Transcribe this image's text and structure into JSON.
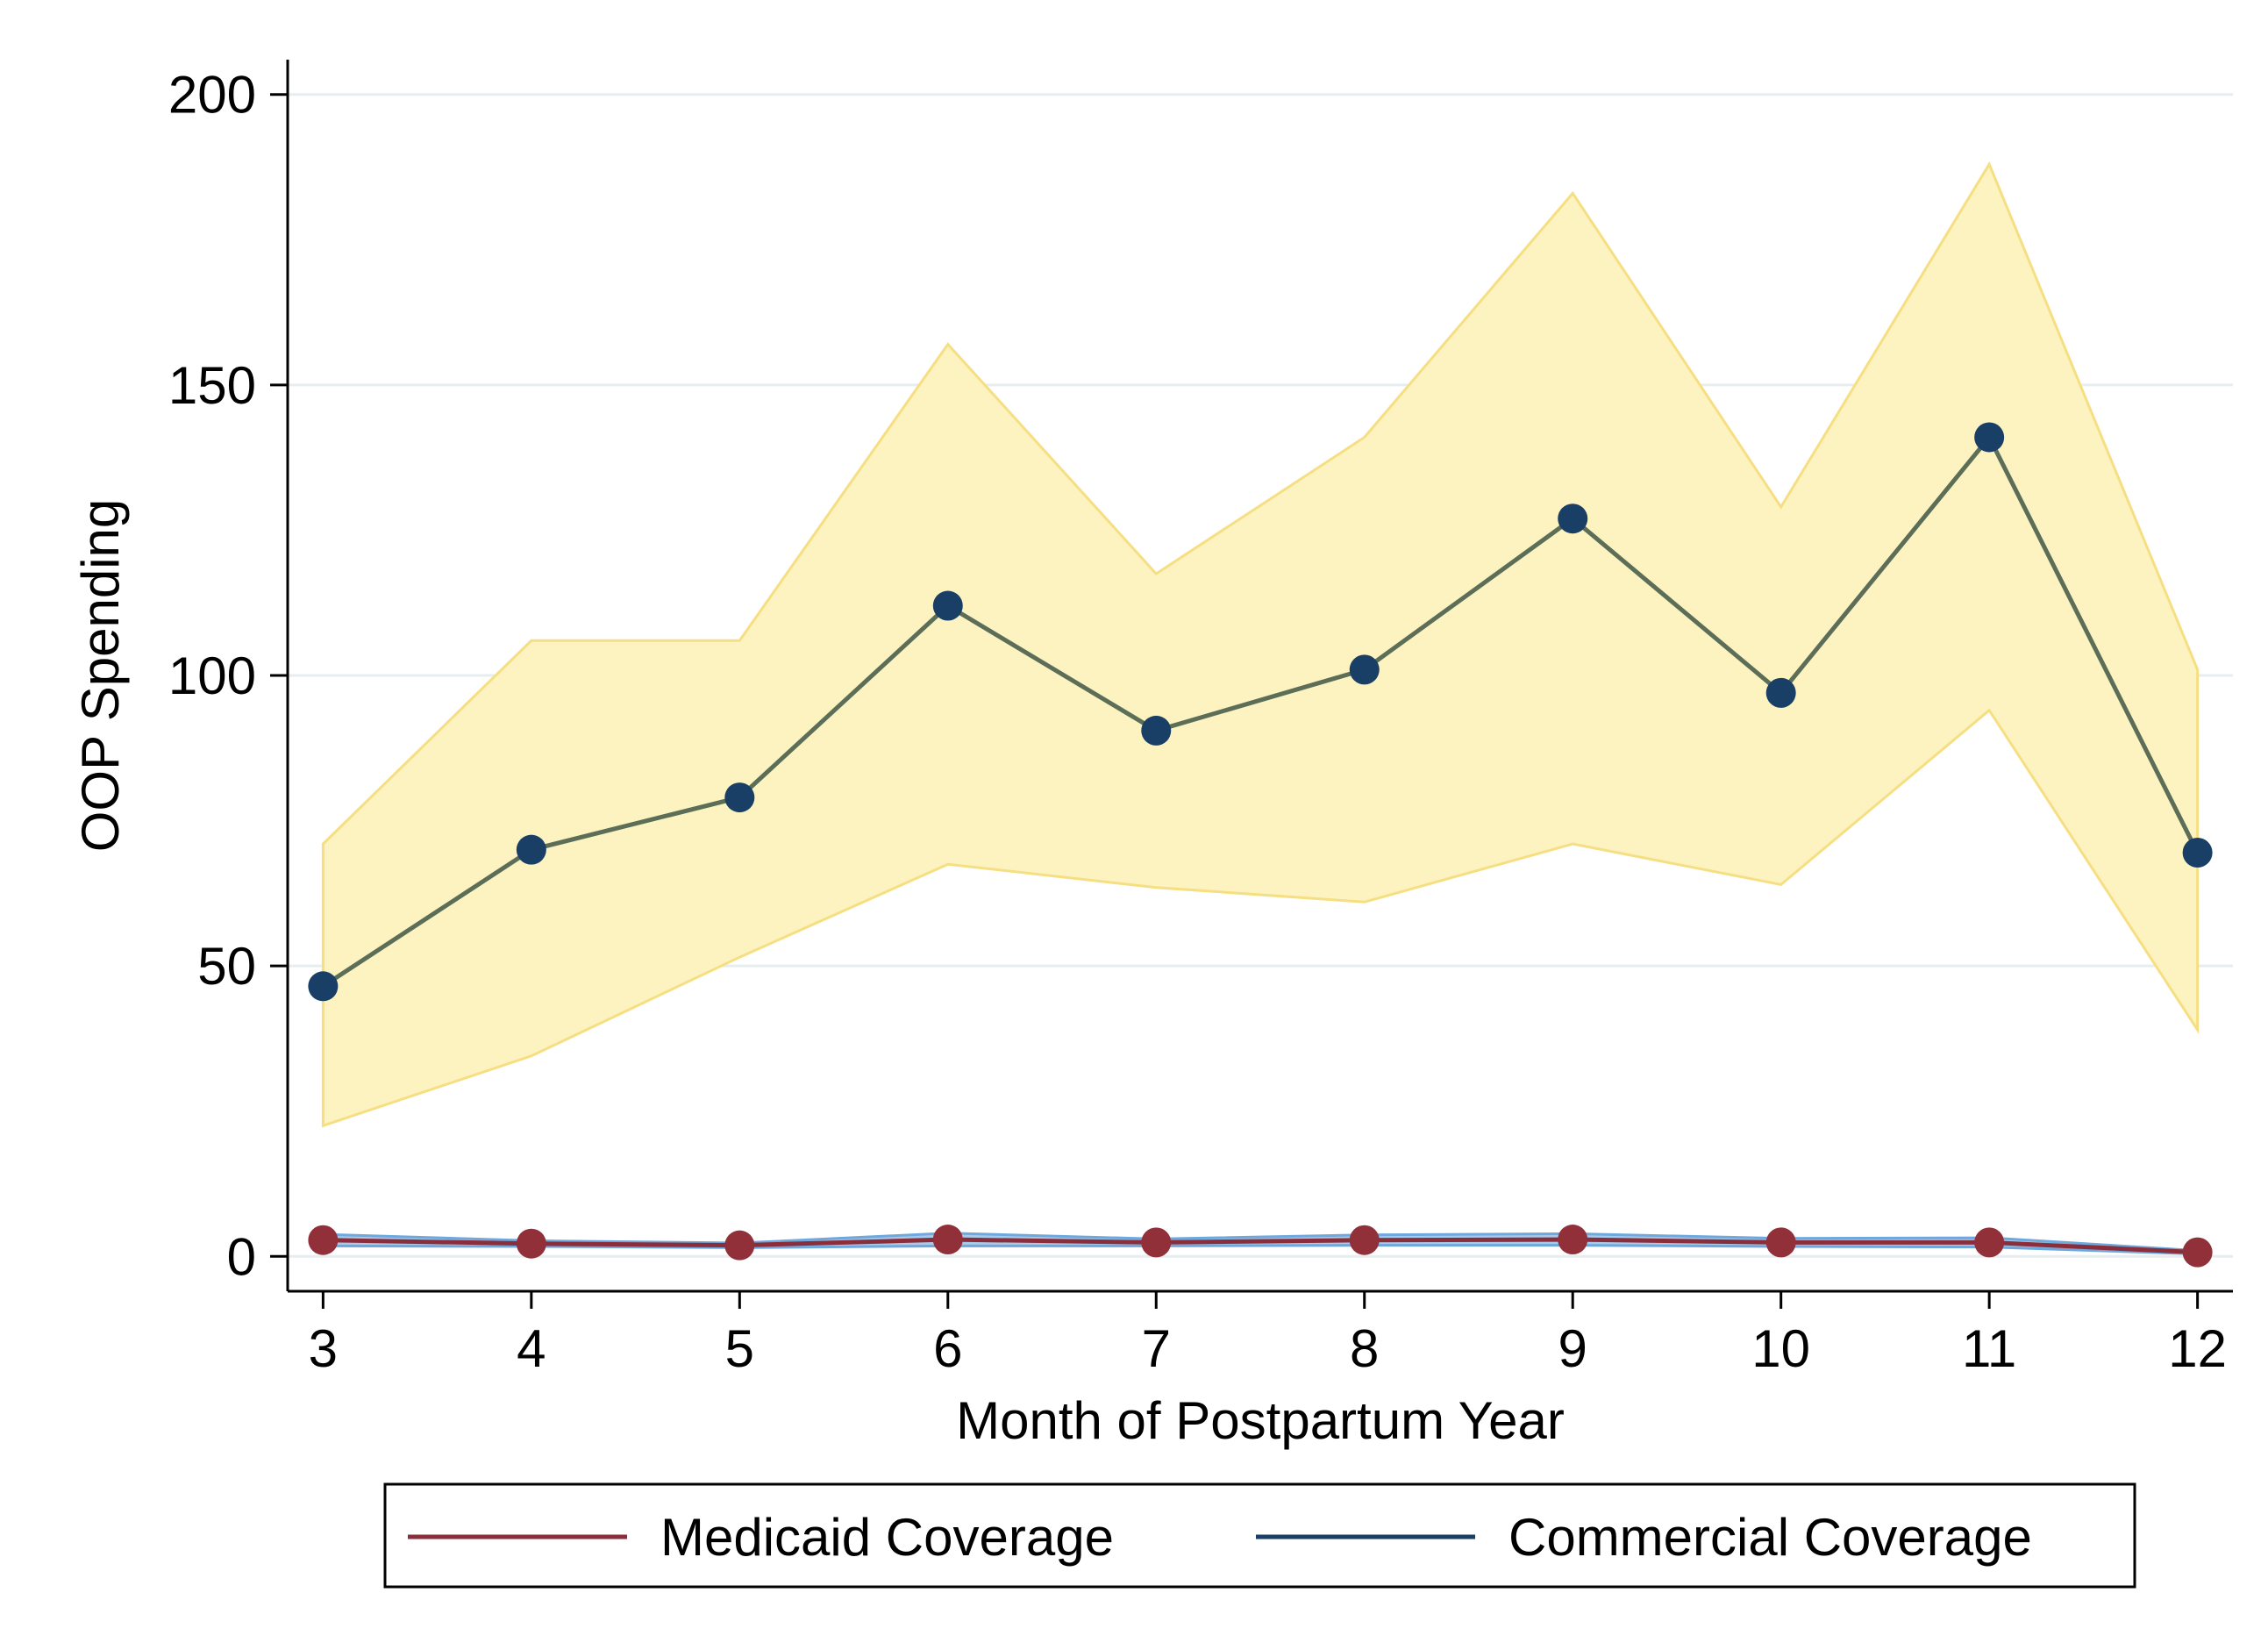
{
  "chart_data": {
    "type": "line",
    "title": "",
    "xlabel": "Month of Postpartum Year",
    "ylabel": "OOP Spending",
    "x": [
      3,
      4,
      5,
      6,
      7,
      8,
      9,
      10,
      11,
      12
    ],
    "x_ticks": [
      "3",
      "4",
      "5",
      "6",
      "7",
      "8",
      "9",
      "10",
      "11",
      "12"
    ],
    "y_ticks": [
      "0",
      "50",
      "100",
      "150",
      "200"
    ],
    "xlim": [
      2.83,
      12.17
    ],
    "ylim": [
      -6,
      206
    ],
    "grid": true,
    "series": [
      {
        "name": "Medicaid Coverage",
        "color": "#8b2e3c",
        "marker_color": "#92303a",
        "values": [
          2.8,
          2.2,
          1.9,
          2.9,
          2.4,
          2.8,
          2.9,
          2.4,
          2.4,
          0.7
        ],
        "ci_lower": [
          1.8,
          1.7,
          1.5,
          1.8,
          1.8,
          1.9,
          1.9,
          1.7,
          1.6,
          0.4
        ],
        "ci_upper": [
          3.8,
          2.7,
          2.3,
          4.0,
          3.0,
          3.7,
          3.9,
          3.1,
          3.2,
          1.0
        ],
        "ci_color": "#6fa8dc"
      },
      {
        "name": "Commercial Coverage",
        "color": "#5c6e58",
        "marker_color": "#1a3f66",
        "values": [
          46.5,
          70,
          79,
          112,
          90.5,
          101,
          127,
          97,
          141,
          69.5
        ],
        "ci_lower": [
          22.5,
          34.5,
          51.5,
          67.5,
          63.5,
          61,
          71,
          64,
          94,
          39
        ],
        "ci_upper": [
          71,
          106,
          106,
          157,
          117.5,
          141,
          183,
          129,
          188,
          101
        ],
        "ci_color": "#fdf3c1",
        "ci_edge_color": "#f6df82"
      }
    ],
    "legend": {
      "position": "bottom",
      "entries": [
        {
          "label": "Medicaid Coverage",
          "color": "#8b2e3c"
        },
        {
          "label": "Commercial Coverage",
          "color": "#1a3f66"
        }
      ]
    }
  }
}
